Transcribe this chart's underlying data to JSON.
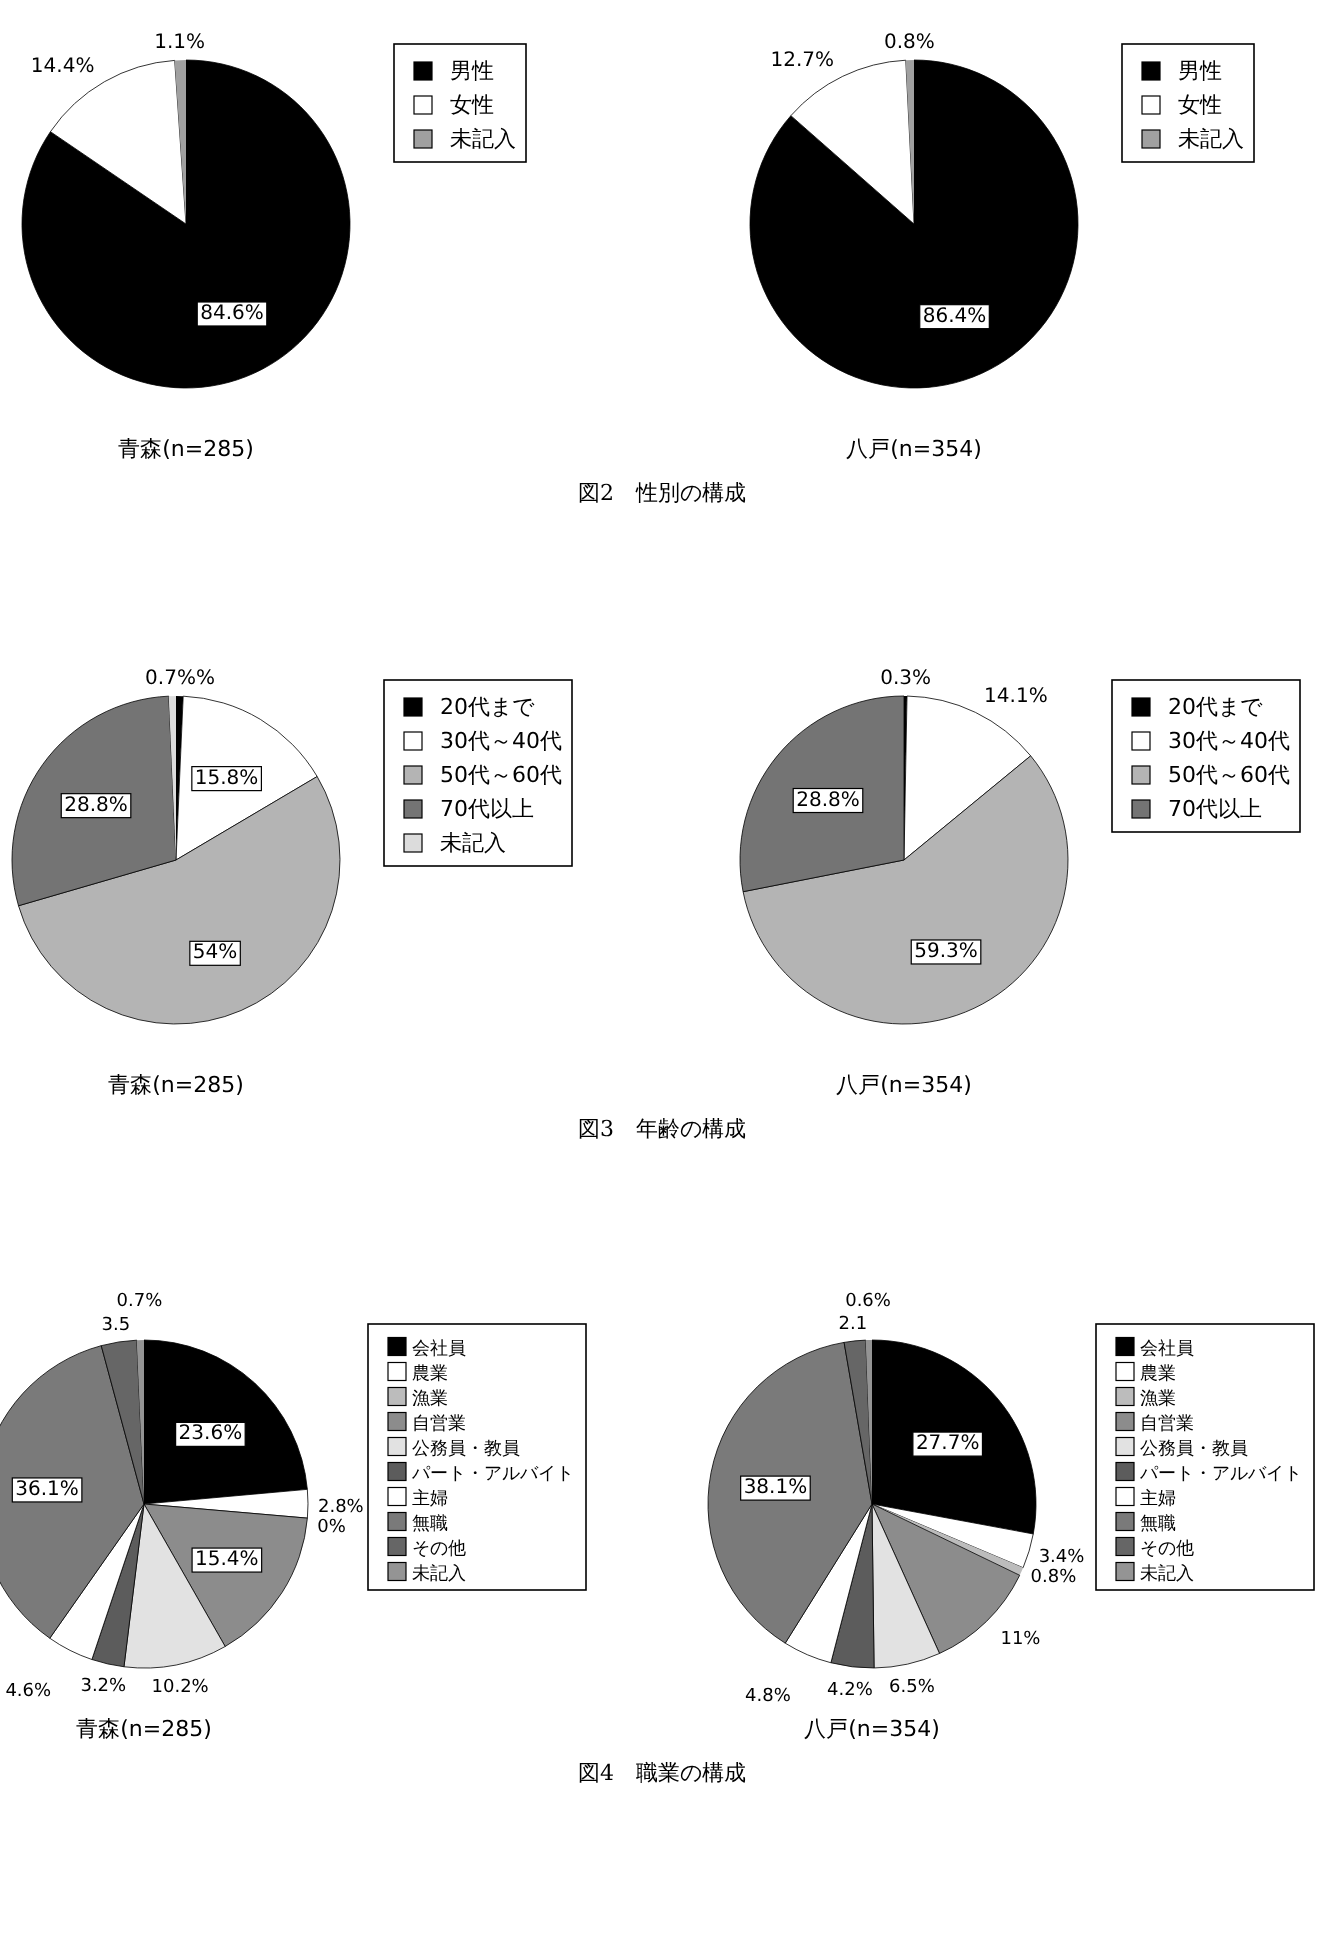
{
  "chart_data": [
    {
      "type": "pie",
      "title": "青森(n=285)",
      "categories": [
        "男性",
        "女性",
        "未記入"
      ],
      "values": [
        84.6,
        14.4,
        1.1
      ],
      "colors": [
        "#000000",
        "#ffffff",
        "#a0a0a0"
      ],
      "value_labels": [
        "84.6%",
        "14.4%",
        "1.1%"
      ],
      "legend": "right",
      "annotations": [
        "図2　性別の構成"
      ]
    },
    {
      "type": "pie",
      "title": "八戸(n=354)",
      "categories": [
        "男性",
        "女性",
        "未記入"
      ],
      "values": [
        86.4,
        12.7,
        0.8
      ],
      "colors": [
        "#000000",
        "#ffffff",
        "#a0a0a0"
      ],
      "value_labels": [
        "86.4%",
        "12.7%",
        "0.8%"
      ],
      "legend": "right"
    },
    {
      "type": "pie",
      "title": "青森(n=285)",
      "categories": [
        "20代まで",
        "30代～40代",
        "50代～60代",
        "70代以上",
        "未記入"
      ],
      "values": [
        0.7,
        15.8,
        54,
        28.8,
        0.7
      ],
      "colors": [
        "#000000",
        "#ffffff",
        "#b4b4b4",
        "#747474",
        "#dcdcdc"
      ],
      "value_labels": [
        "0.7%%",
        "15.8%",
        "54%",
        "28.8%",
        null
      ],
      "legend": "right",
      "annotations": [
        "図3　年齢の構成"
      ]
    },
    {
      "type": "pie",
      "title": "八戸(n=354)",
      "categories": [
        "20代まで",
        "30代～40代",
        "50代～60代",
        "70代以上"
      ],
      "values": [
        0.3,
        14.1,
        59.3,
        28.8
      ],
      "colors": [
        "#000000",
        "#ffffff",
        "#b4b4b4",
        "#747474"
      ],
      "value_labels": [
        "0.3%",
        "14.1%",
        "59.3%",
        "28.8%"
      ],
      "legend": "right"
    },
    {
      "type": "pie",
      "title": "青森(n=285)",
      "categories": [
        "会社員",
        "農業",
        "漁業",
        "自営業",
        "公務員・教員",
        "パート・アルバイト",
        "主婦",
        "無職",
        "その他",
        "未記入"
      ],
      "values": [
        23.6,
        2.8,
        0,
        15.4,
        10.2,
        3.2,
        4.6,
        36.1,
        3.5,
        0.7
      ],
      "colors": [
        "#000000",
        "#ffffff",
        "#bcbcbc",
        "#8c8c8c",
        "#e2e2e2",
        "#5c5c5c",
        "#ffffff",
        "#7a7a7a",
        "#666666",
        "#949494"
      ],
      "value_labels": [
        "23.6%",
        "2.8%",
        "0%",
        "15.4%",
        "10.2%",
        "3.2%",
        "4.6%",
        "36.1%",
        "3.5",
        "0.7%"
      ],
      "legend": "right",
      "annotations": [
        "図4　職業の構成"
      ]
    },
    {
      "type": "pie",
      "title": "八戸(n=354)",
      "categories": [
        "会社員",
        "農業",
        "漁業",
        "自営業",
        "公務員・教員",
        "パート・アルバイト",
        "主婦",
        "無職",
        "その他",
        "未記入"
      ],
      "values": [
        27.7,
        3.4,
        0.8,
        11,
        6.5,
        4.2,
        4.8,
        38.1,
        2.1,
        0.6
      ],
      "colors": [
        "#000000",
        "#ffffff",
        "#bcbcbc",
        "#8c8c8c",
        "#e2e2e2",
        "#5c5c5c",
        "#ffffff",
        "#7a7a7a",
        "#666666",
        "#949494"
      ],
      "value_labels": [
        "27.7%",
        "3.4%",
        "0.8%",
        "11%",
        "6.5%",
        "4.2%",
        "4.8%",
        "38.1%",
        "2.1",
        "0.6%"
      ],
      "legend": "right"
    }
  ]
}
